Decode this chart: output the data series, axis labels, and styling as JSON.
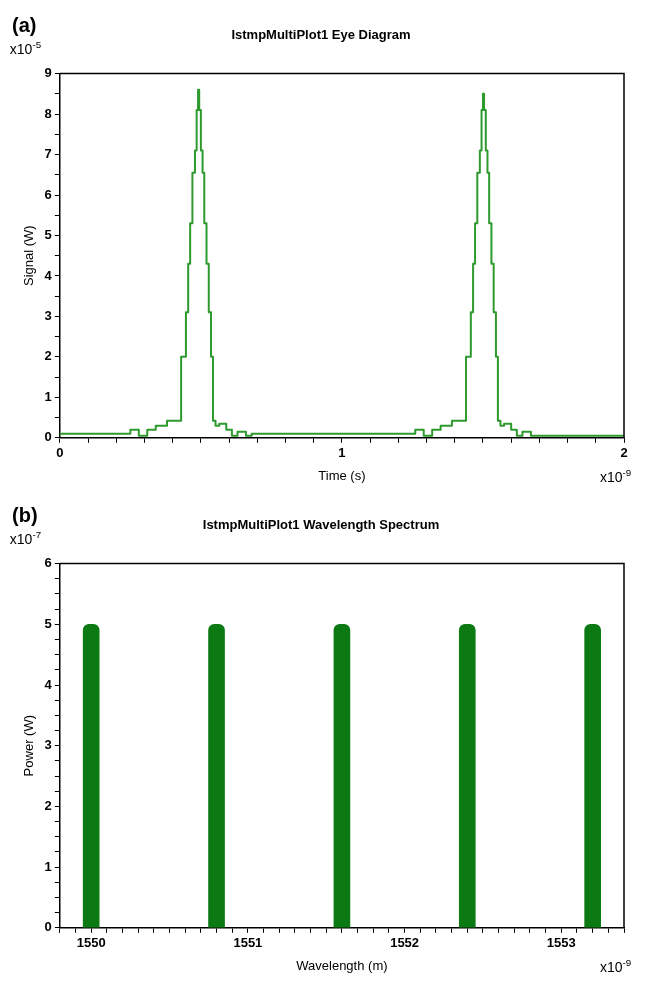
{
  "chart_data": [
    {
      "type": "step",
      "title": "IstmpMultiPlot1 Eye Diagram",
      "xlabel": "Time (s)",
      "ylabel": "Signal (W)",
      "annotations": [
        "(a)",
        "x10$^{-5}$",
        "x10$^{-9}$"
      ],
      "x": [
        0,
        0.25,
        0.28,
        0.31,
        0.34,
        0.38,
        0.43,
        0.447,
        0.455,
        0.462,
        0.47,
        0.479,
        0.485,
        0.49,
        0.494,
        0.5,
        0.506,
        0.512,
        0.52,
        0.528,
        0.536,
        0.543,
        0.552,
        0.565,
        0.59,
        0.61,
        0.63,
        0.66,
        0.68,
        1.26,
        1.29,
        1.32,
        1.35,
        1.39,
        1.44,
        1.457,
        1.465,
        1.472,
        1.48,
        1.489,
        1.495,
        1.5,
        1.504,
        1.51,
        1.516,
        1.522,
        1.53,
        1.538,
        1.546,
        1.553,
        1.562,
        1.575,
        1.6,
        1.62,
        1.64,
        1.67,
        1.69,
        2
      ],
      "series": [
        {
          "color": "#2e9a2e",
          "values": [
            0.05,
            0.1,
            0.2,
            0.05,
            0.2,
            0.3,
            0.42,
            2.0,
            3.1,
            4.3,
            5.3,
            6.55,
            7.1,
            8.1,
            8.6,
            8.1,
            7.1,
            6.55,
            5.3,
            4.3,
            3.1,
            2.0,
            0.42,
            0.3,
            0.35,
            0.2,
            0.05,
            0.15,
            0.05,
            0.1,
            0.2,
            0.05,
            0.2,
            0.3,
            0.42,
            2.0,
            3.1,
            4.3,
            5.3,
            6.55,
            7.1,
            8.1,
            8.5,
            8.1,
            7.1,
            6.55,
            5.3,
            4.3,
            3.1,
            2.0,
            0.42,
            0.3,
            0.35,
            0.2,
            0.05,
            0.15,
            0.05,
            0.05
          ]
        }
      ],
      "xlim": [
        0,
        2
      ],
      "xticks": [
        0,
        {
          "value": 0.1,
          "label": null
        },
        {
          "value": 0.2,
          "label": null
        },
        {
          "value": 0.3,
          "label": null
        },
        {
          "value": 0.4,
          "label": null
        },
        {
          "value": 0.5,
          "label": null
        },
        {
          "value": 0.6,
          "label": null
        },
        {
          "value": 0.7,
          "label": null
        },
        {
          "value": 0.8,
          "label": null
        },
        {
          "value": 0.9,
          "label": null
        },
        1,
        {
          "value": 1.1,
          "label": null
        },
        {
          "value": 1.2,
          "label": null
        },
        {
          "value": 1.3,
          "label": null
        },
        {
          "value": 1.4,
          "label": null
        },
        {
          "value": 1.5,
          "label": null
        },
        {
          "value": 1.6,
          "label": null
        },
        {
          "value": 1.7,
          "label": null
        },
        {
          "value": 1.8,
          "label": null
        },
        {
          "value": 1.9,
          "label": null
        },
        2
      ],
      "ylim": [
        0,
        9
      ],
      "yticks": [
        0,
        {
          "value": 0.5,
          "label": null
        },
        1,
        {
          "value": 1.5,
          "label": null
        },
        2,
        {
          "value": 2.5,
          "label": null
        },
        3,
        {
          "value": 3.5,
          "label": null
        },
        4,
        {
          "value": 4.5,
          "label": null
        },
        5,
        {
          "value": 5.5,
          "label": null
        },
        6,
        {
          "value": 6.5,
          "label": null
        },
        7,
        {
          "value": 7.5,
          "label": null
        },
        8,
        {
          "value": 8.5,
          "label": null
        },
        9
      ],
      "grid": false,
      "legend": false,
      "marker": "none",
      "line_style": "solid"
    },
    {
      "type": "bar",
      "title": "IstmpMultiPlot1 Wavelength Spectrum",
      "xlabel": "Wavelength (m)",
      "ylabel": "Power (W)",
      "annotations": [
        "(b)",
        "x10$^{-7}$",
        "x10$^{-9}$"
      ],
      "x": [
        1550,
        1550.8,
        1551.6,
        1552.4,
        1553.2
      ],
      "series": [
        {
          "color": "#0b7a12",
          "values": [
            5,
            5,
            5,
            5,
            5
          ]
        }
      ],
      "xlim": [
        1549.8,
        1553.4
      ],
      "xticks": [
        {
          "value": 1549.8,
          "label": null
        },
        {
          "value": 1549.9,
          "label": null
        },
        1550,
        {
          "value": 1550.1,
          "label": null
        },
        {
          "value": 1550.2,
          "label": null
        },
        {
          "value": 1550.3,
          "label": null
        },
        {
          "value": 1550.4,
          "label": null
        },
        {
          "value": 1550.5,
          "label": null
        },
        {
          "value": 1550.6,
          "label": null
        },
        {
          "value": 1550.7,
          "label": null
        },
        {
          "value": 1550.8,
          "label": null
        },
        {
          "value": 1550.9,
          "label": null
        },
        1551,
        {
          "value": 1551.1,
          "label": null
        },
        {
          "value": 1551.2,
          "label": null
        },
        {
          "value": 1551.3,
          "label": null
        },
        {
          "value": 1551.4,
          "label": null
        },
        {
          "value": 1551.5,
          "label": null
        },
        {
          "value": 1551.6,
          "label": null
        },
        {
          "value": 1551.7,
          "label": null
        },
        {
          "value": 1551.8,
          "label": null
        },
        {
          "value": 1551.9,
          "label": null
        },
        1552,
        {
          "value": 1552.1,
          "label": null
        },
        {
          "value": 1552.2,
          "label": null
        },
        {
          "value": 1552.3,
          "label": null
        },
        {
          "value": 1552.4,
          "label": null
        },
        {
          "value": 1552.5,
          "label": null
        },
        {
          "value": 1552.6,
          "label": null
        },
        {
          "value": 1552.7,
          "label": null
        },
        {
          "value": 1552.8,
          "label": null
        },
        {
          "value": 1552.9,
          "label": null
        },
        1553,
        {
          "value": 1553.1,
          "label": null
        },
        {
          "value": 1553.2,
          "label": null
        },
        {
          "value": 1553.3,
          "label": null
        },
        {
          "value": 1553.4,
          "label": null
        }
      ],
      "ylim": [
        0,
        6
      ],
      "yticks": [
        0,
        {
          "value": 0.25,
          "label": null
        },
        {
          "value": 0.5,
          "label": null
        },
        {
          "value": 0.75,
          "label": null
        },
        1,
        {
          "value": 1.25,
          "label": null
        },
        {
          "value": 1.5,
          "label": null
        },
        {
          "value": 1.75,
          "label": null
        },
        2,
        {
          "value": 2.25,
          "label": null
        },
        {
          "value": 2.5,
          "label": null
        },
        {
          "value": 2.75,
          "label": null
        },
        3,
        {
          "value": 3.25,
          "label": null
        },
        {
          "value": 3.5,
          "label": null
        },
        {
          "value": 3.75,
          "label": null
        },
        4,
        {
          "value": 4.25,
          "label": null
        },
        {
          "value": 4.5,
          "label": null
        },
        {
          "value": 4.75,
          "label": null
        },
        5,
        {
          "value": 5.25,
          "label": null
        },
        {
          "value": 5.5,
          "label": null
        },
        {
          "value": 5.75,
          "label": null
        },
        6
      ],
      "grid": false,
      "legend": false
    }
  ]
}
